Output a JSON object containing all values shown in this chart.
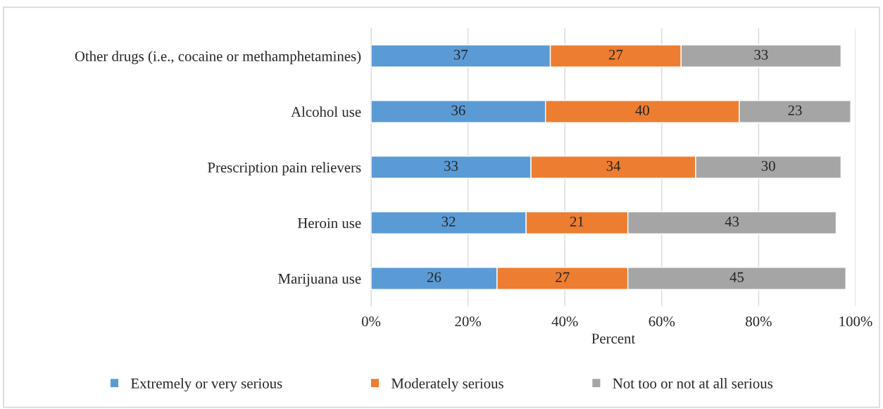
{
  "chart_data": {
    "type": "bar",
    "orientation": "horizontal",
    "stacked": true,
    "categories": [
      "Other drugs (i.e., cocaine or methamphetamines)",
      "Alcohol use",
      "Prescription pain relievers",
      "Heroin use",
      "Marijuana use"
    ],
    "series": [
      {
        "name": "Extremely or very serious",
        "color": "#5b9bd5",
        "values": [
          37,
          36,
          33,
          32,
          26
        ]
      },
      {
        "name": "Moderately serious",
        "color": "#ed7d31",
        "values": [
          27,
          40,
          34,
          21,
          27
        ]
      },
      {
        "name": "Not too or not at all serious",
        "color": "#a5a5a5",
        "values": [
          33,
          23,
          30,
          43,
          45
        ]
      }
    ],
    "xlabel": "Percent",
    "xlim": [
      0,
      100
    ],
    "xticks": [
      {
        "value": 0,
        "label": "0%"
      },
      {
        "value": 20,
        "label": "20%"
      },
      {
        "value": 40,
        "label": "40%"
      },
      {
        "value": 60,
        "label": "60%"
      },
      {
        "value": 80,
        "label": "80%"
      },
      {
        "value": 100,
        "label": "100%"
      }
    ],
    "grid": "x",
    "legend": "bottom",
    "data_labels": true
  }
}
